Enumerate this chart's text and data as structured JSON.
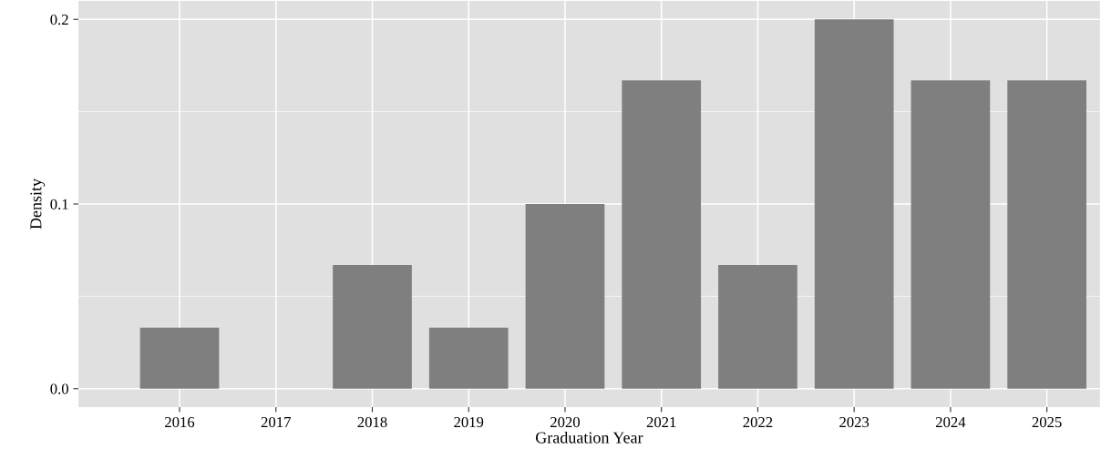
{
  "chart_data": {
    "type": "bar",
    "xlabel": "Graduation Year",
    "ylabel": "Density",
    "categories": [
      "2016",
      "2017",
      "2018",
      "2019",
      "2020",
      "2021",
      "2022",
      "2023",
      "2024",
      "2025"
    ],
    "values": [
      0.033,
      0,
      0.067,
      0.033,
      0.1,
      0.167,
      0.067,
      0.2,
      0.167,
      0.167
    ],
    "color": "#7f7f7f",
    "ylim": [
      -0.01,
      0.21
    ],
    "yticks": [
      {
        "value": 0,
        "label": "0.0"
      },
      0.1,
      0.2
    ],
    "grid": true,
    "ref_lines": [
      {
        "axis": "y",
        "value": 0.05,
        "color": "#ffffff"
      },
      {
        "axis": "y",
        "value": 0.15,
        "color": "#ffffff"
      }
    ]
  }
}
